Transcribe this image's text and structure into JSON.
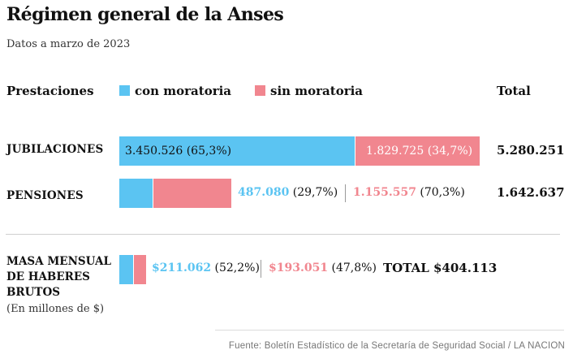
{
  "title": "Régimen general de la Anses",
  "subtitle": "Datos a marzo de 2023",
  "legend": {
    "header": "Prestaciones",
    "con": "con moratoria",
    "sin": "sin moratoria",
    "total_header": "Total"
  },
  "colors": {
    "con": "#5bc4f2",
    "sin": "#f1868f",
    "separator": "#9a9a9a"
  },
  "chart_data": {
    "type": "bar",
    "orientation": "horizontal-stacked",
    "categories": [
      "JUBILACIONES",
      "PENSIONES",
      "MASA MENSUAL DE HABERES BRUTOS"
    ],
    "series": [
      {
        "name": "con moratoria",
        "values": [
          3450526,
          487080,
          211062
        ],
        "percent": [
          65.3,
          29.7,
          52.2
        ]
      },
      {
        "name": "sin moratoria",
        "values": [
          1829725,
          1155557,
          193051
        ],
        "percent": [
          34.7,
          70.3,
          47.8
        ]
      }
    ],
    "totals": [
      5280251,
      1642637,
      404113
    ]
  },
  "rows": {
    "jubilaciones": {
      "label": "JUBILACIONES",
      "con_text": "3.450.526 (65,3%)",
      "sin_text": "1.829.725 (34,7%)",
      "total": "5.280.251"
    },
    "pensiones": {
      "label": "PENSIONES",
      "con_value": "487.080",
      "con_pct": "(29,7%)",
      "sin_value": "1.155.557",
      "sin_pct": "(70,3%)",
      "total": "1.642.637"
    },
    "masa": {
      "label": "MASA MENSUAL DE HABERES BRUTOS",
      "note": "(En millones de $)",
      "con_value": "$211.062",
      "con_pct": "(52,2%)",
      "sin_value": "$193.051",
      "sin_pct": "(47,8%)",
      "total": "TOTAL $404.113"
    }
  },
  "source": "Fuente: Boletín Estadístico de la Secretaría de Seguridad Social / LA NACION"
}
